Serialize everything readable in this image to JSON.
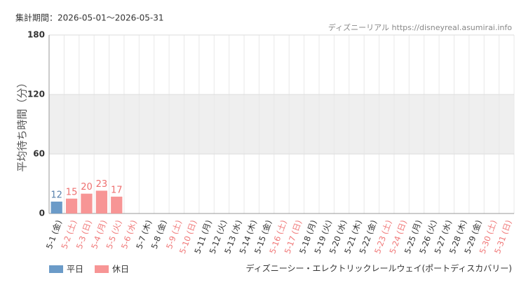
{
  "chart_data": {
    "type": "bar",
    "period": "集計期間：2026-05-01～2026-05-31",
    "source": "ディズニーリアル https://disneyreal.asumirai.info",
    "y_label": "平均待ち時間（分）",
    "footer": "ディズニーシー・エレクトリックレールウェイ(ポートディスカバリー)",
    "categories": [
      "5-1 (金)",
      "5-2 (土)",
      "5-3 (日)",
      "5-4 (月)",
      "5-5 (火)",
      "5-6 (水)",
      "5-7 (木)",
      "5-8 (金)",
      "5-9 (土)",
      "5-10 (日)",
      "5-11 (月)",
      "5-12 (火)",
      "5-13 (水)",
      "5-14 (木)",
      "5-15 (金)",
      "5-16 (土)",
      "5-17 (日)",
      "5-18 (月)",
      "5-19 (火)",
      "5-20 (水)",
      "5-21 (木)",
      "5-22 (金)",
      "5-23 (土)",
      "5-24 (日)",
      "5-25 (月)",
      "5-26 (火)",
      "5-27 (水)",
      "5-28 (木)",
      "5-29 (金)",
      "5-30 (土)",
      "5-31 (日)"
    ],
    "category_colors": [
      "#333",
      "#f07878",
      "#f07878",
      "#f07878",
      "#f07878",
      "#f07878",
      "#333",
      "#333",
      "#f07878",
      "#f07878",
      "#333",
      "#333",
      "#333",
      "#333",
      "#333",
      "#f07878",
      "#f07878",
      "#333",
      "#333",
      "#333",
      "#333",
      "#333",
      "#f07878",
      "#f07878",
      "#333",
      "#333",
      "#333",
      "#333",
      "#333",
      "#f07878",
      "#f07878"
    ],
    "series": [
      {
        "name": "平日",
        "color": "#6b9bc8",
        "label_color": "#5a82ad",
        "values": [
          12,
          null,
          null,
          null,
          null,
          null,
          null,
          null,
          null,
          null,
          null,
          null,
          null,
          null,
          null,
          null,
          null,
          null,
          null,
          null,
          null,
          null,
          null,
          null,
          null,
          null,
          null,
          null,
          null,
          null,
          null
        ]
      },
      {
        "name": "休日",
        "color": "#f79595",
        "label_color": "#ee6f6f",
        "values": [
          null,
          15,
          20,
          23,
          17,
          null,
          null,
          null,
          null,
          null,
          null,
          null,
          null,
          null,
          null,
          null,
          null,
          null,
          null,
          null,
          null,
          null,
          null,
          null,
          null,
          null,
          null,
          null,
          null,
          null,
          null
        ]
      }
    ],
    "ylim": [
      0,
      180
    ],
    "yticks": [
      0,
      60,
      120,
      180
    ],
    "shaded_range": [
      60,
      120
    ],
    "grid": true
  }
}
